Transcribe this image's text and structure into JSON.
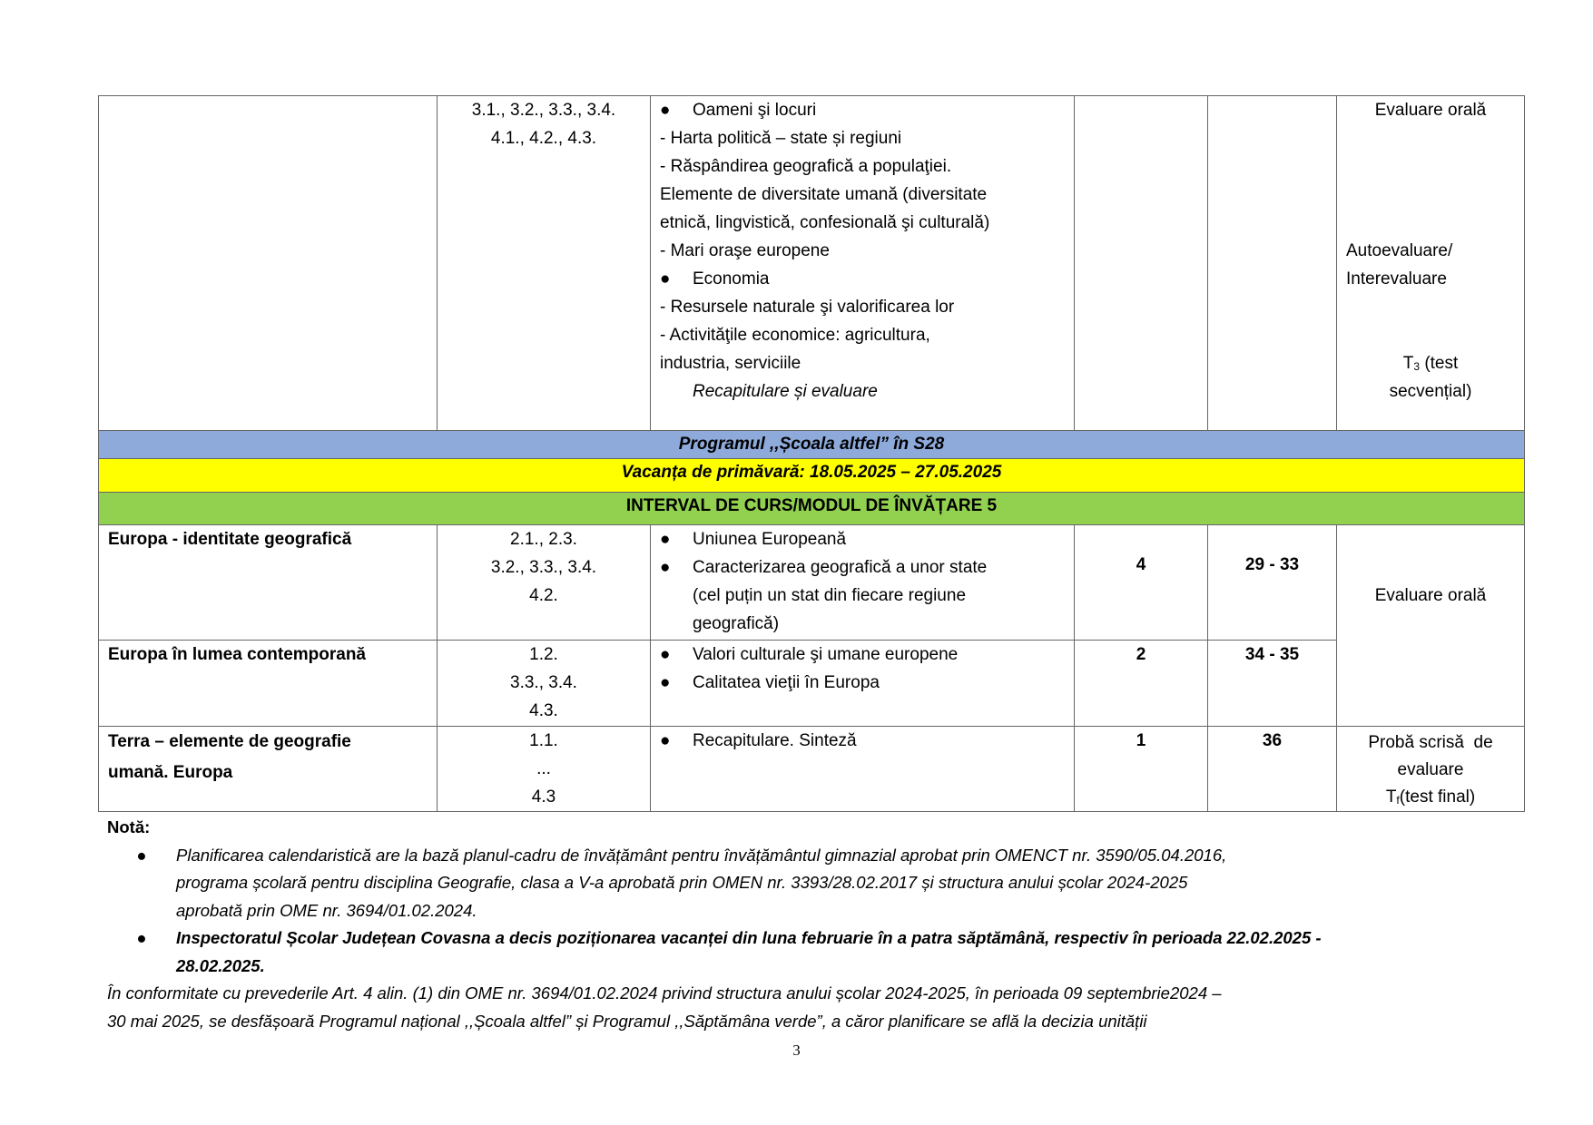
{
  "table": {
    "row1": {
      "unit": "",
      "competences": [
        "3.1., 3.2., 3.3., 3.4.",
        "4.1., 4.2., 4.3."
      ],
      "content": [
        {
          "type": "bullet",
          "text": "Oameni şi locuri"
        },
        {
          "type": "line",
          "text": "- Harta politică – state și regiuni"
        },
        {
          "type": "line",
          "text": "- Răspândirea geografică a populaţiei."
        },
        {
          "type": "line",
          "text": "Elemente de diversitate umană (diversitate"
        },
        {
          "type": "line",
          "text": "etnică, lingvistică, confesională şi culturală)"
        },
        {
          "type": "line",
          "text": "- Mari oraşe europene"
        },
        {
          "type": "bullet",
          "text": "Economia"
        },
        {
          "type": "line",
          "text": "- Resursele naturale şi valorificarea lor"
        },
        {
          "type": "line",
          "text": "- Activităţile economice: agricultura,"
        },
        {
          "type": "line",
          "text": "industria, serviciile"
        },
        {
          "type": "italic",
          "text": "Recapitulare și evaluare"
        }
      ],
      "hours": "",
      "weeks": "",
      "evaluation": {
        "e1": "Evaluare orală",
        "e2a": "Autoevaluare/",
        "e2b": "Interevaluare",
        "e3_t": "T",
        "e3_sub": "3",
        "e3a": "(test",
        "e3b": "secvențial)"
      }
    },
    "band_blue": "Programul ,,Școala altfel” în S28",
    "band_yellow": "Vacanța de primăvară: 18.05.2025 – 27.05.2025",
    "band_green": "INTERVAL DE CURS/MODUL DE ÎNVĂȚARE 5",
    "rows": [
      {
        "unit": "Europa - identitate geografică",
        "competences": [
          "2.1., 2.3.",
          "3.2., 3.3., 3.4.",
          "4.2."
        ],
        "content": [
          "Uniunea Europeană",
          "Caracterizarea geografică a unor state",
          "(cel puțin un stat din fiecare regiune",
          "geografică)"
        ],
        "hours": "4",
        "weeks": "29 - 33"
      },
      {
        "unit": "Europa în lumea contemporană",
        "competences": [
          "1.2.",
          "3.3., 3.4.",
          "4.3."
        ],
        "content": [
          "Valori culturale şi umane europene",
          "Calitatea vieţii în Europa"
        ],
        "hours": "2",
        "weeks": "34 - 35"
      },
      {
        "unit": [
          "Terra – elemente de geografie",
          "umană. Europa"
        ],
        "competences": [
          "1.1.",
          "...",
          "4.3"
        ],
        "content": [
          "Recapitulare. Sinteză"
        ],
        "hours": "1",
        "weeks": "36"
      }
    ],
    "eval_oral": "Evaluare orală",
    "eval_final": {
      "l1": "Probă scrisă  de",
      "l2": "evaluare",
      "t": "T",
      "sub": "f",
      "l3": "(test final)"
    }
  },
  "note": {
    "title": "Notă:",
    "item1": [
      "Planificarea calendaristică are la bază planul-cadru de învățământ pentru învățământul gimnazial aprobat prin OMENCT nr. 3590/05.04.2016,",
      "programa școlară pentru disciplina Geografie, clasa a V-a aprobată prin OMEN nr. 3393/28.02.2017 și structura anului școlar 2024-2025",
      "aprobată prin OME nr. 3694/01.02.2024."
    ],
    "item2": [
      "Inspectoratul Școlar Județean Covasna a decis poziționarea vacanței din luna februarie în a patra săptămână, respectiv în perioada 22.02.2025 -",
      "28.02.2025."
    ],
    "para": [
      "În conformitate cu prevederile Art. 4 alin. (1) din OME nr. 3694/01.02.2024 privind structura anului școlar 2024-2025, în perioada 09 septembrie2024 –",
      "30 mai 2025, se desfășoară Programul național ,,Școala altfel” și Programul ,,Săptămâna verde”, a căror planificare se află la decizia unității"
    ]
  },
  "page_number": "3",
  "colors": {
    "blue_band": "#8eaadb",
    "yellow_band": "#ffff00",
    "green_band": "#92d050"
  }
}
